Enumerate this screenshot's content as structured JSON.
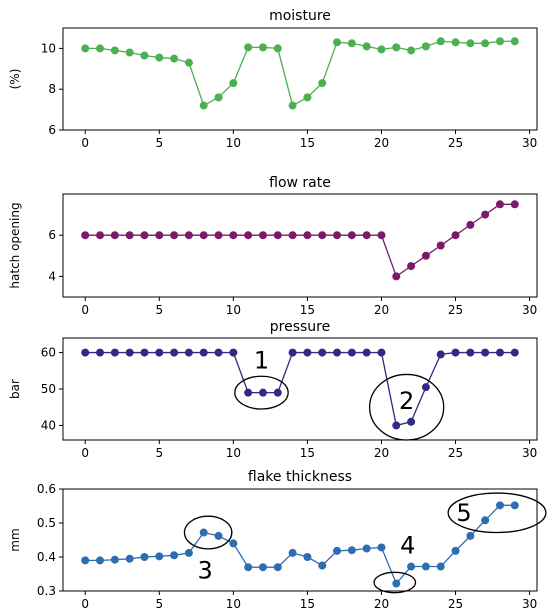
{
  "chart_data": [
    {
      "type": "line",
      "title": "moisture",
      "ylabel": "(%)",
      "xlabel": "",
      "color": "#4caf50",
      "x": [
        0,
        1,
        2,
        3,
        4,
        5,
        6,
        7,
        8,
        9,
        10,
        11,
        12,
        13,
        14,
        15,
        16,
        17,
        18,
        19,
        20,
        21,
        22,
        23,
        24,
        25,
        26,
        27,
        28,
        29
      ],
      "values": [
        10.0,
        10.0,
        9.9,
        9.8,
        9.65,
        9.55,
        9.5,
        9.3,
        7.2,
        7.6,
        8.3,
        10.05,
        10.05,
        10.0,
        7.2,
        7.6,
        8.3,
        10.3,
        10.25,
        10.1,
        9.95,
        10.05,
        9.9,
        10.1,
        10.35,
        10.3,
        10.25,
        10.25,
        10.35,
        10.35
      ],
      "xlim": [
        -1.5,
        30.5
      ],
      "ylim": [
        6,
        11
      ],
      "xticks": [
        0,
        5,
        10,
        15,
        20,
        25,
        30
      ],
      "yticks": [
        6,
        8,
        10
      ],
      "grid": false
    },
    {
      "type": "line",
      "title": "flow rate",
      "ylabel": "hatch opening",
      "xlabel": "",
      "color": "#7b1a6a",
      "x": [
        0,
        1,
        2,
        3,
        4,
        5,
        6,
        7,
        8,
        9,
        10,
        11,
        12,
        13,
        14,
        15,
        16,
        17,
        18,
        19,
        20,
        21,
        22,
        23,
        24,
        25,
        26,
        27,
        28,
        29
      ],
      "values": [
        6,
        6,
        6,
        6,
        6,
        6,
        6,
        6,
        6,
        6,
        6,
        6,
        6,
        6,
        6,
        6,
        6,
        6,
        6,
        6,
        6,
        4.0,
        4.5,
        5.0,
        5.5,
        6.0,
        6.5,
        7.0,
        7.5,
        7.5
      ],
      "xlim": [
        -1.5,
        30.5
      ],
      "ylim": [
        3,
        8
      ],
      "xticks": [
        0,
        5,
        10,
        15,
        20,
        25,
        30
      ],
      "yticks": [
        4,
        6
      ],
      "grid": false
    },
    {
      "type": "line",
      "title": "pressure",
      "ylabel": "bar",
      "xlabel": "",
      "color": "#2e2a86",
      "x": [
        0,
        1,
        2,
        3,
        4,
        5,
        6,
        7,
        8,
        9,
        10,
        11,
        12,
        13,
        14,
        15,
        16,
        17,
        18,
        19,
        20,
        21,
        22,
        23,
        24,
        25,
        26,
        27,
        28,
        29
      ],
      "values": [
        60,
        60,
        60,
        60,
        60,
        60,
        60,
        60,
        60,
        60,
        60,
        49,
        49,
        49,
        60,
        60,
        60,
        60,
        60,
        60,
        60,
        40,
        41,
        50.5,
        59.5,
        60,
        60,
        60,
        60,
        60
      ],
      "xlim": [
        -1.5,
        30.5
      ],
      "ylim": [
        36,
        64
      ],
      "xticks": [
        0,
        5,
        10,
        15,
        20,
        25,
        30
      ],
      "yticks": [
        40,
        50,
        60
      ],
      "grid": false,
      "annotations": [
        {
          "text": "1",
          "x": 11.9,
          "y": 49,
          "rx": 1.8,
          "ry": 4.5
        },
        {
          "text": "2",
          "x": 21.7,
          "y": 45,
          "rx": 2.5,
          "ry": 9.0
        }
      ]
    },
    {
      "type": "line",
      "title": "flake thickness",
      "ylabel": "mm",
      "xlabel": "",
      "color": "#2f6db3",
      "x": [
        0,
        1,
        2,
        3,
        4,
        5,
        6,
        7,
        8,
        9,
        10,
        11,
        12,
        13,
        14,
        15,
        16,
        17,
        18,
        19,
        20,
        21,
        22,
        23,
        24,
        25,
        26,
        27,
        28,
        29
      ],
      "values": [
        0.39,
        0.39,
        0.392,
        0.395,
        0.4,
        0.402,
        0.405,
        0.412,
        0.472,
        0.462,
        0.44,
        0.37,
        0.37,
        0.37,
        0.412,
        0.4,
        0.375,
        0.418,
        0.42,
        0.425,
        0.428,
        0.322,
        0.372,
        0.372,
        0.372,
        0.418,
        0.462,
        0.508,
        0.552,
        0.552
      ],
      "xlim": [
        -1.5,
        30.5
      ],
      "ylim": [
        0.3,
        0.6
      ],
      "xticks": [
        0,
        5,
        10,
        15,
        20,
        25,
        30
      ],
      "yticks": [
        0.3,
        0.4,
        0.5,
        0.6
      ],
      "grid": false,
      "annotations": [
        {
          "text": "3",
          "x": 8.3,
          "y": 0.472,
          "rx": 1.6,
          "ry": 0.048
        },
        {
          "text": "4",
          "x": 20.9,
          "y": 0.325,
          "rx": 1.4,
          "ry": 0.03
        },
        {
          "text": "5",
          "x": 27.8,
          "y": 0.53,
          "rx": 3.3,
          "ry": 0.058
        }
      ]
    }
  ]
}
